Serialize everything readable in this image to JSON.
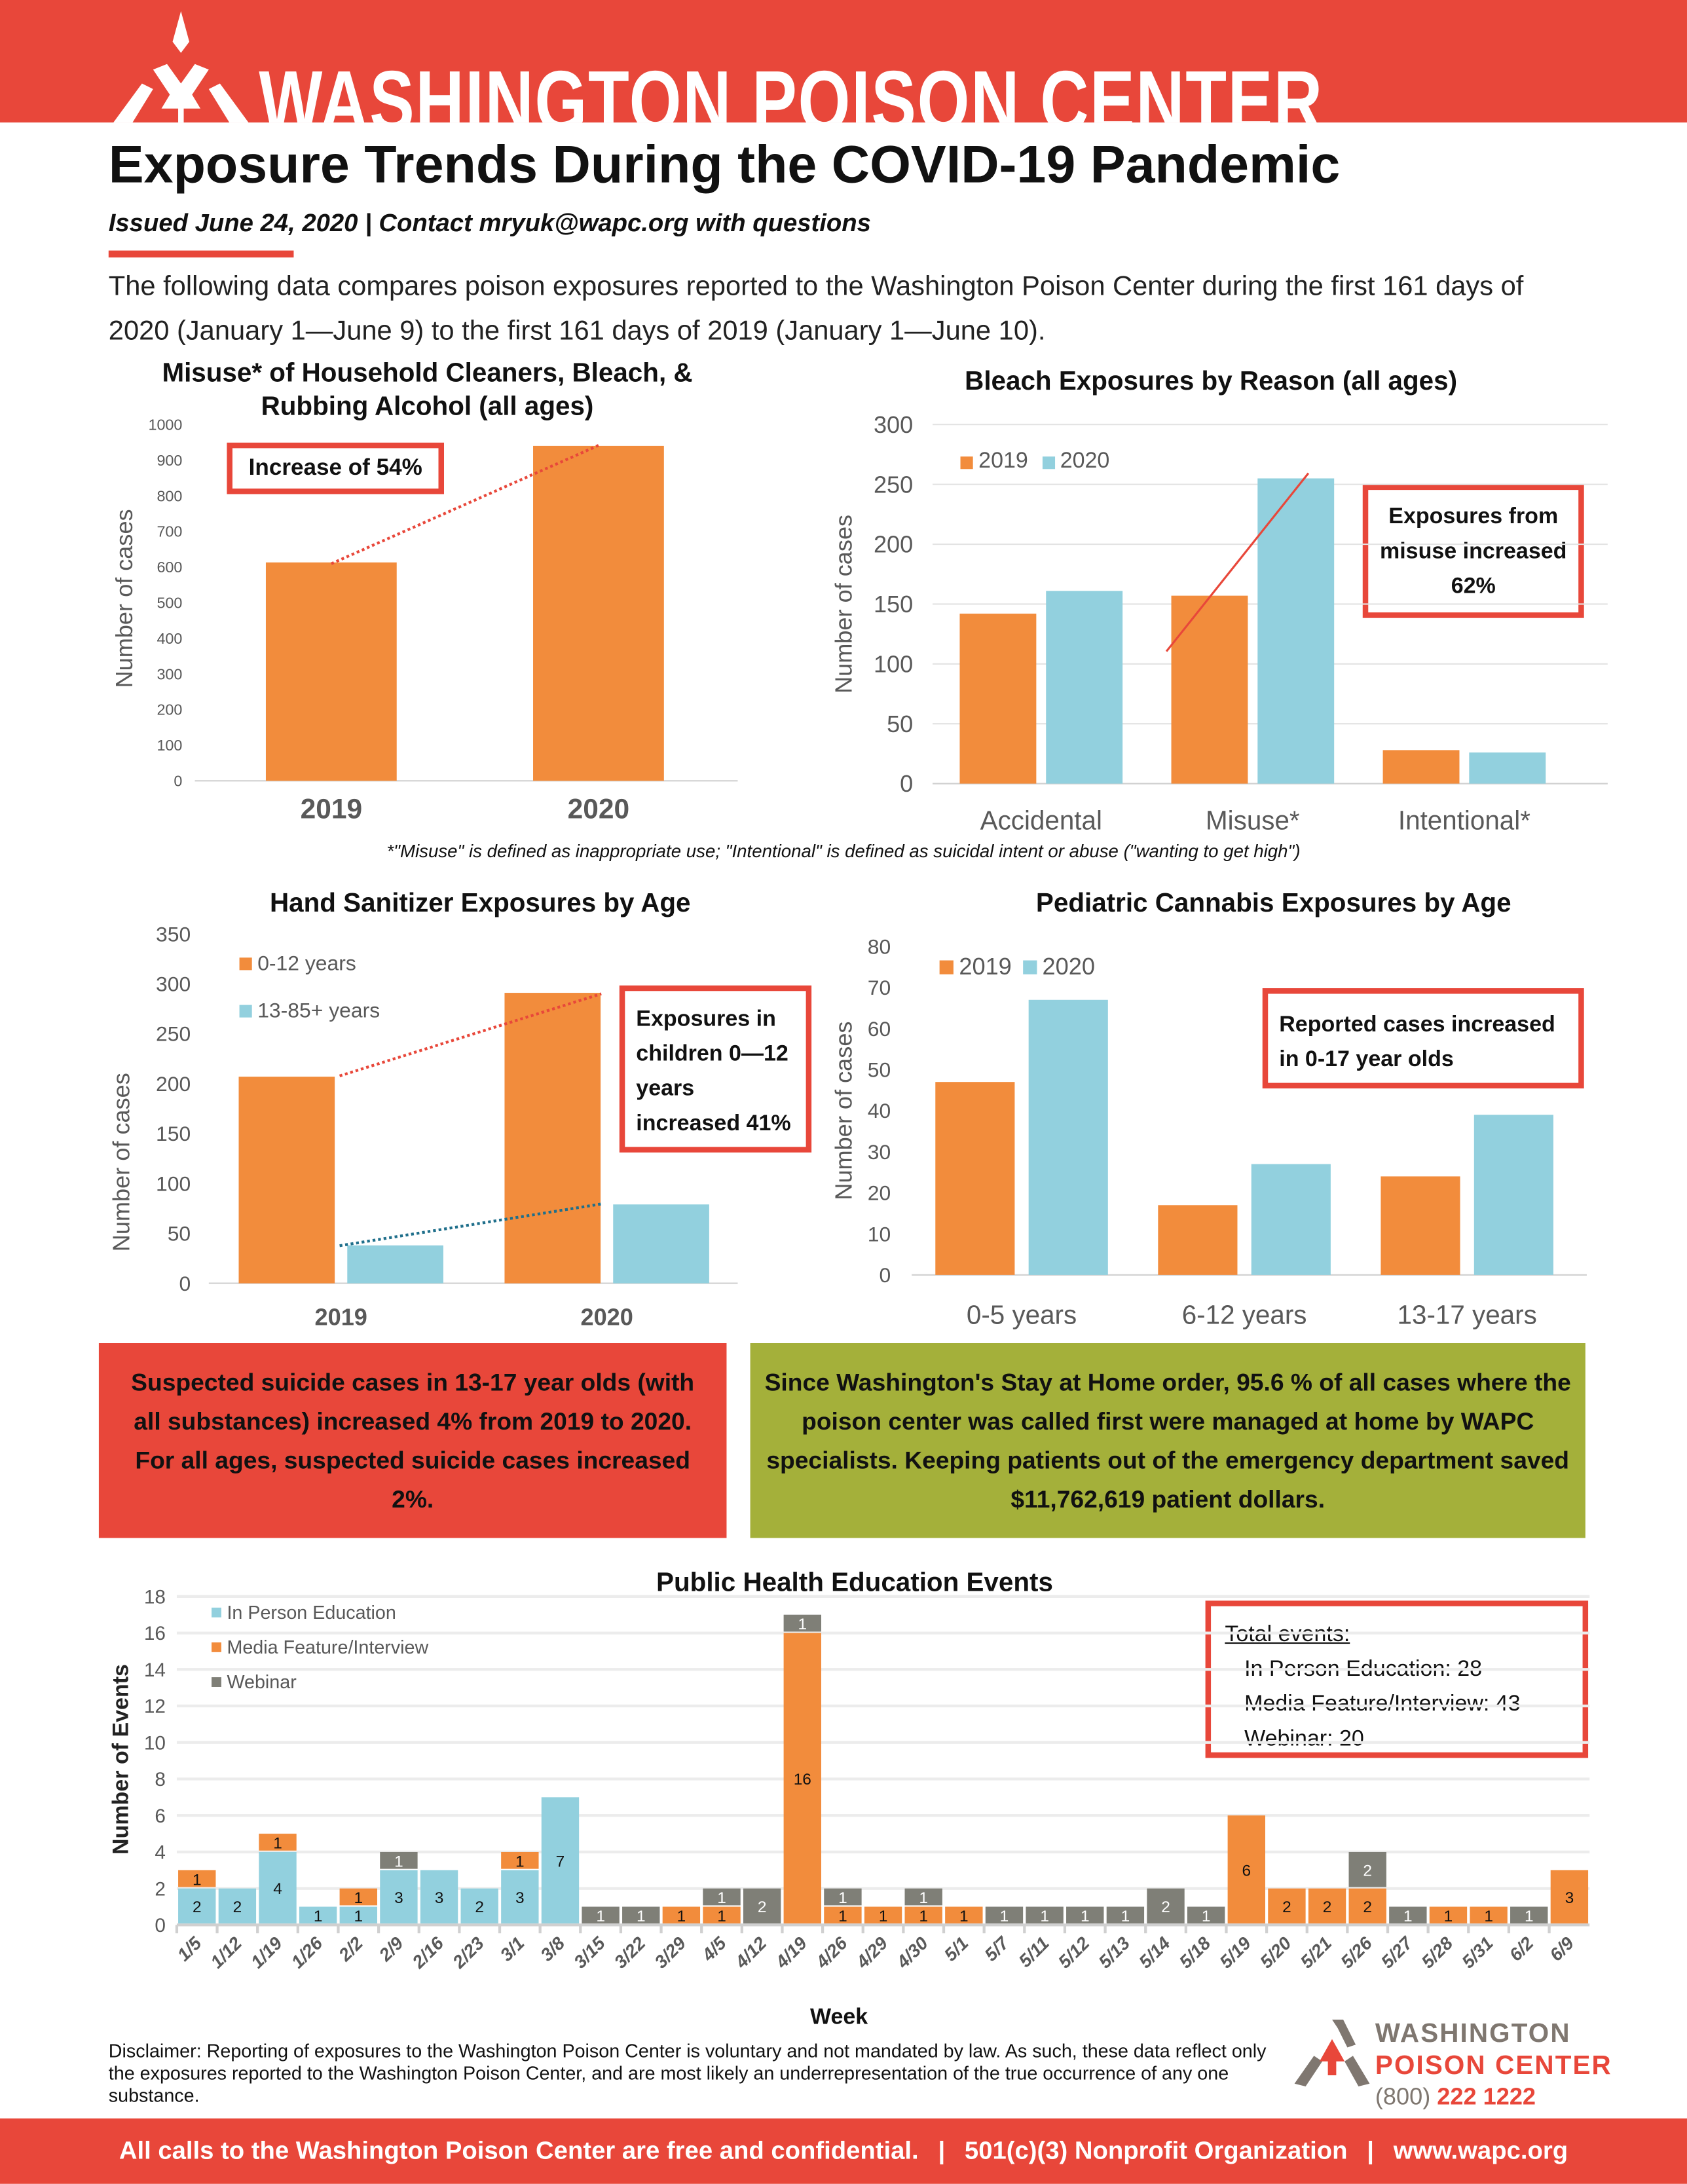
{
  "header": {
    "brand": "WASHINGTON POISON CENTER",
    "title": "Exposure Trends During the COVID-19 Pandemic",
    "subtitle": "Issued June 24, 2020 | Contact mryuk@wapc.org with questions",
    "intro": "The following data compares poison exposures reported to the Washington Poison Center during the first 161 days of 2020 (January 1—June 9) to the first 161 days of 2019 (January 1—June 10)."
  },
  "colors": {
    "brand_red": "#e8473a",
    "orange": "#f28c3c",
    "teal": "#92d0de",
    "gray": "#7f7f77",
    "green": "#a4b03a"
  },
  "footnote": "*\"Misuse\" is defined as inappropriate use; \"Intentional\" is defined as suicidal intent or abuse (\"wanting to get high\")",
  "chart_data": [
    {
      "type": "bar",
      "title": "Misuse* of Household Cleaners, Bleach, & Rubbing Alcohol (all ages)",
      "categories": [
        "2019",
        "2020"
      ],
      "values": [
        613,
        940
      ],
      "ylabel": "Number of cases",
      "ylim": [
        0,
        1000
      ],
      "yticks": [
        "0",
        "100",
        "200",
        "300",
        "400",
        "500",
        "600",
        "700",
        "800",
        "900",
        "1000"
      ],
      "annotation": "Increase of 54%"
    },
    {
      "type": "bar",
      "title": "Bleach Exposures by Reason (all ages)",
      "categories": [
        "Accidental",
        "Misuse*",
        "Intentional*"
      ],
      "series": [
        {
          "name": "2019",
          "values": [
            142,
            157,
            28
          ]
        },
        {
          "name": "2020",
          "values": [
            161,
            255,
            26
          ]
        }
      ],
      "ylabel": "Number of cases",
      "ylim": [
        0,
        300
      ],
      "yticks": [
        "0",
        "50",
        "100",
        "150",
        "200",
        "250",
        "300"
      ],
      "grid": true,
      "legend": "top-left",
      "annotation": "Exposures from misuse increased 62%"
    },
    {
      "type": "bar",
      "title": "Hand Sanitizer Exposures by Age",
      "categories": [
        "2019",
        "2020"
      ],
      "series": [
        {
          "name": "0-12 years",
          "values": [
            207,
            291
          ]
        },
        {
          "name": "13-85+ years",
          "values": [
            38,
            79
          ]
        }
      ],
      "ylabel": "Number of cases",
      "ylim": [
        0,
        350
      ],
      "yticks": [
        "0",
        "50",
        "100",
        "150",
        "200",
        "250",
        "300",
        "350"
      ],
      "legend": "top-left",
      "annotation": "Exposures in children 0—12 years increased 41%"
    },
    {
      "type": "bar",
      "title": "Pediatric Cannabis Exposures by Age",
      "categories": [
        "0-5 years",
        "6-12 years",
        "13-17 years"
      ],
      "series": [
        {
          "name": "2019",
          "values": [
            47,
            17,
            24
          ]
        },
        {
          "name": "2020",
          "values": [
            67,
            27,
            39
          ]
        }
      ],
      "ylabel": "Number of cases",
      "ylim": [
        0,
        80
      ],
      "yticks": [
        "0",
        "10",
        "20",
        "30",
        "40",
        "50",
        "60",
        "70",
        "80"
      ],
      "legend": "top-left",
      "annotation": "Reported cases increased in 0-17 year olds"
    },
    {
      "type": "bar",
      "stacked": true,
      "title": "Public Health Education Events",
      "categories": [
        "1/5",
        "1/12",
        "1/19",
        "1/26",
        "2/2",
        "2/9",
        "2/16",
        "2/23",
        "3/1",
        "3/8",
        "3/15",
        "3/22",
        "3/29",
        "4/5",
        "4/12",
        "4/19",
        "4/26",
        "4/29",
        "4/30",
        "5/1",
        "5/7",
        "5/11",
        "5/12",
        "5/13",
        "5/14",
        "5/18",
        "5/19",
        "5/20",
        "5/21",
        "5/26",
        "5/27",
        "5/28",
        "5/31",
        "6/2",
        "6/9"
      ],
      "series": [
        {
          "name": "In Person Education",
          "values": [
            2,
            2,
            4,
            1,
            1,
            3,
            3,
            2,
            3,
            7,
            0,
            0,
            0,
            0,
            0,
            0,
            0,
            0,
            0,
            0,
            0,
            0,
            0,
            0,
            0,
            0,
            0,
            0,
            0,
            0,
            0,
            0,
            0,
            0,
            0
          ]
        },
        {
          "name": "Media Feature/Interview",
          "values": [
            1,
            0,
            1,
            0,
            1,
            0,
            0,
            0,
            1,
            0,
            0,
            0,
            1,
            1,
            0,
            16,
            1,
            1,
            1,
            1,
            0,
            0,
            0,
            0,
            0,
            0,
            6,
            2,
            2,
            2,
            0,
            1,
            1,
            0,
            3
          ]
        },
        {
          "name": "Webinar",
          "values": [
            0,
            0,
            0,
            0,
            0,
            1,
            0,
            0,
            0,
            0,
            1,
            1,
            0,
            1,
            2,
            1,
            1,
            0,
            1,
            0,
            1,
            1,
            1,
            1,
            2,
            1,
            0,
            0,
            0,
            2,
            1,
            0,
            0,
            1,
            0
          ]
        }
      ],
      "xlabel": "Week",
      "ylabel": "Number of Events",
      "ylim": [
        0,
        18
      ],
      "yticks": [
        "0",
        "2",
        "4",
        "6",
        "8",
        "10",
        "12",
        "14",
        "16",
        "18"
      ],
      "grid": true,
      "legend": "top-left",
      "totals": {
        "heading": "Total events:",
        "lines": [
          "In Person Education: 28",
          "Media Feature/Interview: 43",
          "Webinar: 20"
        ]
      }
    }
  ],
  "boxes": {
    "suicide": "Suspected suicide cases in 13-17 year olds (with all substances) increased 4% from 2019 to 2020. For all ages, suspected suicide cases increased 2%.",
    "home": "Since Washington's Stay at Home order, 95.6 % of all cases where the poison center was called first were managed at home by WAPC specialists. Keeping patients out of the emergency department saved  $11,762,619 patient dollars."
  },
  "disclaimer": "Disclaimer: Reporting of exposures to the Washington Poison Center is voluntary and not mandated by law.  As such, these data reflect only the exposures reported to the Washington Poison Center, and are most likely an underrepresentation of the true occurrence of any one substance.",
  "logo": {
    "line1": "WASHINGTON",
    "line2": "POISON CENTER",
    "phone_area": "(800)",
    "phone_number": "222 1222"
  },
  "footer": {
    "items": [
      "All calls to the Washington Poison Center are free and confidential.",
      "501(c)(3) Nonprofit Organization",
      "www.wapc.org"
    ],
    "separator": "|"
  }
}
